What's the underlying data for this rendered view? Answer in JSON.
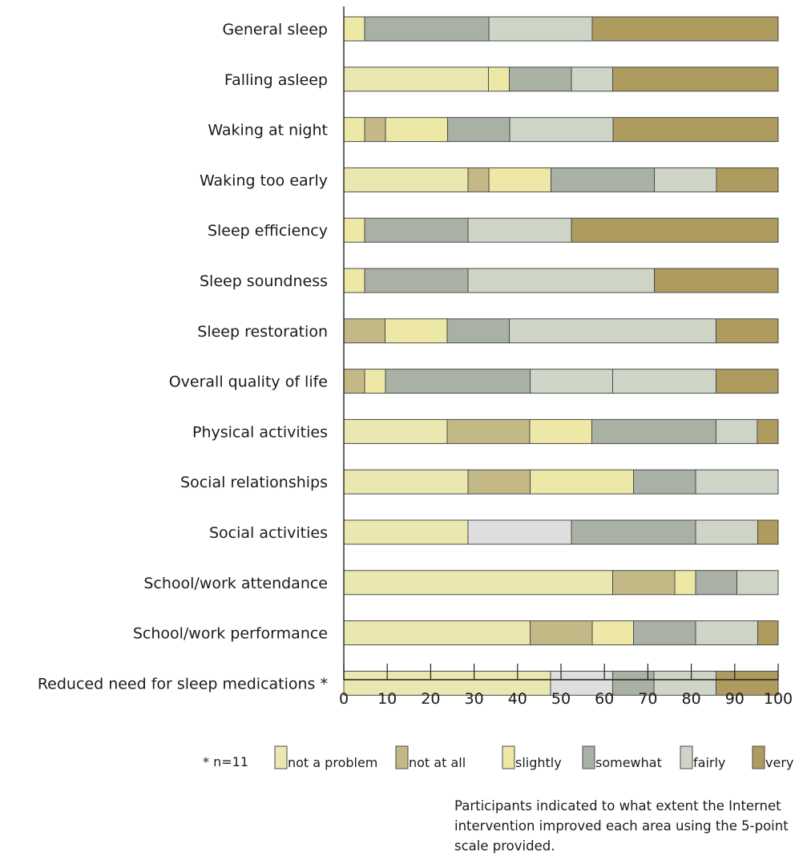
{
  "chart_data": {
    "type": "bar",
    "orientation": "horizontal",
    "stacked": true,
    "categories": [
      "General sleep",
      "Falling asleep",
      "Waking at night",
      "Waking too early",
      "Sleep efficiency",
      "Sleep soundness",
      "Sleep restoration",
      "Overall quality of life",
      "Physical activities",
      "Social relationships",
      "Social activities",
      "School/work attendance",
      "School/work performance",
      "Reduced need for sleep medications *"
    ],
    "segments": [
      [
        {
          "color": "#ede8a6",
          "value": 4.8
        },
        {
          "color": "#a9b0a4",
          "value": 28.6
        },
        {
          "color": "#ced5c6",
          "value": 23.8
        },
        {
          "color": "#ae9b5e",
          "value": 42.8
        }
      ],
      [
        {
          "color": "#ebe7b0",
          "value": 33.3
        },
        {
          "color": "#ede8a6",
          "value": 4.8
        },
        {
          "color": "#a9b0a4",
          "value": 14.3
        },
        {
          "color": "#ced5c6",
          "value": 9.5
        },
        {
          "color": "#ae9b5e",
          "value": 38.1
        }
      ],
      [
        {
          "color": "#ede8a6",
          "value": 4.8
        },
        {
          "color": "#c3b987",
          "value": 4.8
        },
        {
          "color": "#ede8a6",
          "value": 14.3
        },
        {
          "color": "#a9b0a4",
          "value": 14.3
        },
        {
          "color": "#ced5c6",
          "value": 23.8
        },
        {
          "color": "#ae9b5e",
          "value": 38.0
        }
      ],
      [
        {
          "color": "#ebe7b0",
          "value": 28.6
        },
        {
          "color": "#c3b987",
          "value": 4.8
        },
        {
          "color": "#ede8a6",
          "value": 14.3
        },
        {
          "color": "#a9b0a4",
          "value": 23.8
        },
        {
          "color": "#ced5c6",
          "value": 14.3
        },
        {
          "color": "#ae9b5e",
          "value": 14.2
        }
      ],
      [
        {
          "color": "#ede8a6",
          "value": 4.8
        },
        {
          "color": "#a9b0a4",
          "value": 23.8
        },
        {
          "color": "#ced5c6",
          "value": 23.8
        },
        {
          "color": "#ae9b5e",
          "value": 47.6
        }
      ],
      [
        {
          "color": "#ede8a6",
          "value": 4.8
        },
        {
          "color": "#a9b0a4",
          "value": 23.8
        },
        {
          "color": "#ced5c6",
          "value": 42.9
        },
        {
          "color": "#ae9b5e",
          "value": 28.5
        }
      ],
      [
        {
          "color": "#c3b987",
          "value": 9.5
        },
        {
          "color": "#ede8a6",
          "value": 14.3
        },
        {
          "color": "#a9b0a4",
          "value": 14.3
        },
        {
          "color": "#ced5c6",
          "value": 47.6
        },
        {
          "color": "#ae9b5e",
          "value": 14.3
        }
      ],
      [
        {
          "color": "#c3b987",
          "value": 4.8
        },
        {
          "color": "#ede8a6",
          "value": 4.8
        },
        {
          "color": "#a9b0a4",
          "value": 33.3
        },
        {
          "color": "#ced5c6",
          "value": 19.0
        },
        {
          "color": "#ced5c6",
          "value": 23.8
        },
        {
          "color": "#ae9b5e",
          "value": 14.3
        }
      ],
      [
        {
          "color": "#ebe7b0",
          "value": 23.8
        },
        {
          "color": "#c3b987",
          "value": 19.0
        },
        {
          "color": "#ede8a6",
          "value": 14.3
        },
        {
          "color": "#a9b0a4",
          "value": 28.6
        },
        {
          "color": "#ced5c6",
          "value": 9.5
        },
        {
          "color": "#ae9b5e",
          "value": 4.8
        }
      ],
      [
        {
          "color": "#ebe7b0",
          "value": 28.6
        },
        {
          "color": "#c3b987",
          "value": 14.3
        },
        {
          "color": "#ede8a6",
          "value": 23.8
        },
        {
          "color": "#a9b0a4",
          "value": 14.3
        },
        {
          "color": "#ced5c6",
          "value": 19.0
        }
      ],
      [
        {
          "color": "#ebe7b0",
          "value": 28.6
        },
        {
          "color": "#dedede",
          "value": 23.8
        },
        {
          "color": "#a9b0a4",
          "value": 28.6
        },
        {
          "color": "#ced5c6",
          "value": 14.3
        },
        {
          "color": "#ae9b5e",
          "value": 4.7
        }
      ],
      [
        {
          "color": "#ebe7b0",
          "value": 61.9
        },
        {
          "color": "#c3b987",
          "value": 14.3
        },
        {
          "color": "#ede8a6",
          "value": 4.8
        },
        {
          "color": "#a9b0a4",
          "value": 9.5
        },
        {
          "color": "#ced5c6",
          "value": 9.5
        }
      ],
      [
        {
          "color": "#ebe7b0",
          "value": 42.9
        },
        {
          "color": "#c3b987",
          "value": 14.3
        },
        {
          "color": "#ede8a6",
          "value": 9.5
        },
        {
          "color": "#a9b0a4",
          "value": 14.3
        },
        {
          "color": "#ced5c6",
          "value": 14.3
        },
        {
          "color": "#ae9b5e",
          "value": 4.7
        }
      ],
      [
        {
          "color": "#ebe7b0",
          "value": 47.6
        },
        {
          "color": "#dedede",
          "value": 14.3
        },
        {
          "color": "#a9b0a4",
          "value": 9.5
        },
        {
          "color": "#ced5c6",
          "value": 14.3
        },
        {
          "color": "#ae9b5e",
          "value": 14.3
        }
      ]
    ],
    "xlim": [
      0,
      100
    ],
    "xticks": [
      "0",
      "10",
      "20",
      "30",
      "40",
      "50",
      "60",
      "70",
      "80",
      "90",
      "100"
    ],
    "legend": [
      {
        "label": "not a problem",
        "color": "#ebe7b0"
      },
      {
        "label": "not at all",
        "color": "#c3b987"
      },
      {
        "label": "slightly",
        "color": "#ede8a6"
      },
      {
        "label": "somewhat",
        "color": "#a9b0a4"
      },
      {
        "label": "fairly",
        "color": "#ced5c6"
      },
      {
        "label": "very",
        "color": "#ae9b5e"
      }
    ],
    "legend_position": "bottom",
    "note": "* n=11",
    "caption": "Participants indicated to what extent the Internet intervention improved each area using the 5-point scale provided.",
    "grid": false
  }
}
